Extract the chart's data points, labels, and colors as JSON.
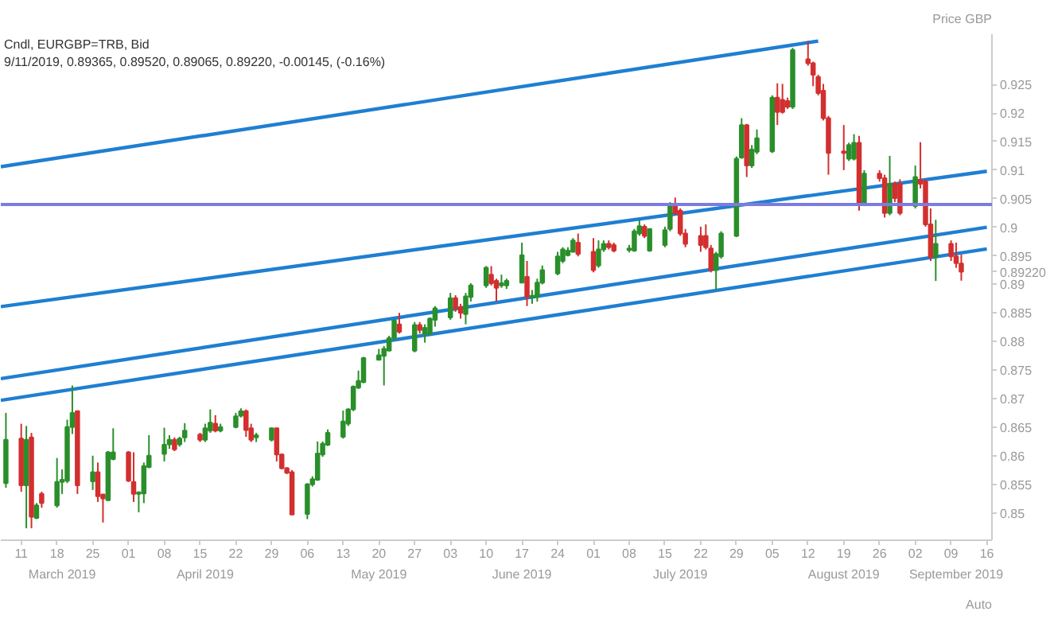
{
  "chart_data": {
    "type": "candlestick",
    "title": "Cndl, EURGBP=TRB, Bid",
    "subtitle": "9/11/2019, 0.89365, 0.89520, 0.89065, 0.89220, -0.00145, (-0.16%)",
    "ylabel": "Price GBP",
    "x": [
      "2019-03-08",
      "2019-03-11",
      "2019-03-12",
      "2019-03-13",
      "2019-03-14",
      "2019-03-15",
      "2019-03-18",
      "2019-03-19",
      "2019-03-20",
      "2019-03-21",
      "2019-03-22",
      "2019-03-25",
      "2019-03-26",
      "2019-03-27",
      "2019-03-28",
      "2019-03-29",
      "2019-04-01",
      "2019-04-02",
      "2019-04-03",
      "2019-04-04",
      "2019-04-05",
      "2019-04-08",
      "2019-04-09",
      "2019-04-10",
      "2019-04-11",
      "2019-04-12",
      "2019-04-15",
      "2019-04-16",
      "2019-04-17",
      "2019-04-18",
      "2019-04-19",
      "2019-04-22",
      "2019-04-23",
      "2019-04-24",
      "2019-04-25",
      "2019-04-26",
      "2019-04-29",
      "2019-04-30",
      "2019-05-01",
      "2019-05-02",
      "2019-05-03",
      "2019-05-06",
      "2019-05-07",
      "2019-05-08",
      "2019-05-09",
      "2019-05-10",
      "2019-05-13",
      "2019-05-14",
      "2019-05-15",
      "2019-05-16",
      "2019-05-17",
      "2019-05-20",
      "2019-05-21",
      "2019-05-22",
      "2019-05-23",
      "2019-05-24",
      "2019-05-27",
      "2019-05-28",
      "2019-05-29",
      "2019-05-30",
      "2019-05-31",
      "2019-06-03",
      "2019-06-04",
      "2019-06-05",
      "2019-06-06",
      "2019-06-07",
      "2019-06-10",
      "2019-06-11",
      "2019-06-12",
      "2019-06-13",
      "2019-06-14",
      "2019-06-17",
      "2019-06-18",
      "2019-06-19",
      "2019-06-20",
      "2019-06-21",
      "2019-06-24",
      "2019-06-25",
      "2019-06-26",
      "2019-06-27",
      "2019-06-28",
      "2019-07-01",
      "2019-07-02",
      "2019-07-03",
      "2019-07-04",
      "2019-07-05",
      "2019-07-08",
      "2019-07-09",
      "2019-07-10",
      "2019-07-11",
      "2019-07-12",
      "2019-07-15",
      "2019-07-16",
      "2019-07-17",
      "2019-07-18",
      "2019-07-19",
      "2019-07-22",
      "2019-07-23",
      "2019-07-24",
      "2019-07-25",
      "2019-07-26",
      "2019-07-29",
      "2019-07-30",
      "2019-07-31",
      "2019-08-01",
      "2019-08-02",
      "2019-08-05",
      "2019-08-06",
      "2019-08-07",
      "2019-08-08",
      "2019-08-09",
      "2019-08-12",
      "2019-08-13",
      "2019-08-14",
      "2019-08-15",
      "2019-08-16",
      "2019-08-19",
      "2019-08-20",
      "2019-08-21",
      "2019-08-22",
      "2019-08-23",
      "2019-08-26",
      "2019-08-27",
      "2019-08-28",
      "2019-08-29",
      "2019-08-30",
      "2019-09-02",
      "2019-09-03",
      "2019-09-04",
      "2019-09-05",
      "2019-09-06",
      "2019-09-09",
      "2019-09-10",
      "2019-09-11"
    ],
    "ohlc": [
      [
        0.8552,
        0.8675,
        0.8544,
        0.8628
      ],
      [
        0.863,
        0.8656,
        0.8537,
        0.8548
      ],
      [
        0.8548,
        0.8652,
        0.8473,
        0.8628
      ],
      [
        0.8632,
        0.864,
        0.8473,
        0.8493
      ],
      [
        0.8491,
        0.8517,
        0.8489,
        0.8513
      ],
      [
        0.8533,
        0.8537,
        0.8509,
        0.8517
      ],
      [
        0.8513,
        0.8596,
        0.8509,
        0.8554
      ],
      [
        0.8554,
        0.8576,
        0.8533,
        0.8558
      ],
      [
        0.8556,
        0.8663,
        0.8552,
        0.865
      ],
      [
        0.865,
        0.8723,
        0.8638,
        0.8675
      ],
      [
        0.8678,
        0.8679,
        0.8533,
        0.8548
      ],
      [
        0.8555,
        0.86,
        0.854,
        0.8571
      ],
      [
        0.8571,
        0.8588,
        0.8519,
        0.8529
      ],
      [
        0.8532,
        0.8533,
        0.8483,
        0.8525
      ],
      [
        0.8522,
        0.8608,
        0.8521,
        0.8606
      ],
      [
        0.8594,
        0.8648,
        0.8592,
        0.8606
      ],
      [
        0.8606,
        0.8608,
        0.8554,
        0.8556
      ],
      [
        0.8554,
        0.8606,
        0.8519,
        0.8533
      ],
      [
        0.8533,
        0.8537,
        0.8501,
        0.8536
      ],
      [
        0.8534,
        0.8588,
        0.8517,
        0.8582
      ],
      [
        0.858,
        0.8636,
        0.8578,
        0.86
      ],
      [
        0.8603,
        0.8649,
        0.859,
        0.8619
      ],
      [
        0.862,
        0.8636,
        0.8612,
        0.8628
      ],
      [
        0.8628,
        0.8632,
        0.8608,
        0.8611
      ],
      [
        0.862,
        0.8633,
        0.8616,
        0.863
      ],
      [
        0.8632,
        0.8657,
        0.8624,
        0.8644
      ],
      [
        0.8637,
        0.864,
        0.8624,
        0.8628
      ],
      [
        0.8628,
        0.8656,
        0.8624,
        0.8648
      ],
      [
        0.8644,
        0.8681,
        0.864,
        0.8658
      ],
      [
        0.8656,
        0.8671,
        0.8641,
        0.8644
      ],
      [
        0.8644,
        0.8656,
        0.8641,
        0.865
      ],
      [
        0.865,
        0.8675,
        0.8648,
        0.8669
      ],
      [
        0.867,
        0.8683,
        0.8667,
        0.8678
      ],
      [
        0.8678,
        0.8681,
        0.8633,
        0.8645
      ],
      [
        0.8648,
        0.8656,
        0.8624,
        0.8628
      ],
      [
        0.8632,
        0.864,
        0.8624,
        0.8636
      ],
      [
        0.8628,
        0.8649,
        0.8625,
        0.8648
      ],
      [
        0.8648,
        0.8649,
        0.859,
        0.8602
      ],
      [
        0.8602,
        0.8604,
        0.8576,
        0.8578
      ],
      [
        0.8578,
        0.858,
        0.8568,
        0.857
      ],
      [
        0.8571,
        0.8575,
        0.8497,
        0.8497
      ],
      [
        0.8498,
        0.8552,
        0.8489,
        0.855
      ],
      [
        0.855,
        0.8564,
        0.8546,
        0.8559
      ],
      [
        0.8558,
        0.8625,
        0.8556,
        0.8604
      ],
      [
        0.8602,
        0.8625,
        0.8598,
        0.8621
      ],
      [
        0.8619,
        0.8646,
        0.8617,
        0.864
      ],
      [
        0.8633,
        0.8679,
        0.863,
        0.866
      ],
      [
        0.8656,
        0.8683,
        0.8652,
        0.8681
      ],
      [
        0.8681,
        0.8723,
        0.8678,
        0.8721
      ],
      [
        0.8719,
        0.8749,
        0.8717,
        0.8731
      ],
      [
        0.8729,
        0.8773,
        0.8727,
        0.8771
      ],
      [
        0.8768,
        0.8787,
        0.8767,
        0.8776
      ],
      [
        0.8775,
        0.8792,
        0.8723,
        0.8787
      ],
      [
        0.8784,
        0.881,
        0.8783,
        0.8806
      ],
      [
        0.8806,
        0.8838,
        0.8802,
        0.8837
      ],
      [
        0.883,
        0.885,
        0.8814,
        0.8817
      ],
      [
        0.8784,
        0.8834,
        0.8781,
        0.8829
      ],
      [
        0.8829,
        0.8834,
        0.8814,
        0.882
      ],
      [
        0.8813,
        0.883,
        0.8798,
        0.8824
      ],
      [
        0.8814,
        0.8842,
        0.881,
        0.884
      ],
      [
        0.8838,
        0.8862,
        0.8826,
        0.8858
      ],
      [
        0.8842,
        0.8885,
        0.8838,
        0.8876
      ],
      [
        0.8876,
        0.8881,
        0.8852,
        0.8858
      ],
      [
        0.886,
        0.8866,
        0.884,
        0.885
      ],
      [
        0.8848,
        0.8885,
        0.883,
        0.8879
      ],
      [
        0.8878,
        0.8902,
        0.887,
        0.8898
      ],
      [
        0.8898,
        0.8932,
        0.8894,
        0.8929
      ],
      [
        0.8917,
        0.8932,
        0.8898,
        0.8902
      ],
      [
        0.8906,
        0.891,
        0.887,
        0.8894
      ],
      [
        0.8898,
        0.8917,
        0.8894,
        0.8902
      ],
      [
        0.8898,
        0.891,
        0.8892,
        0.8906
      ],
      [
        0.8903,
        0.8973,
        0.8902,
        0.8951
      ],
      [
        0.8913,
        0.8941,
        0.8862,
        0.8878
      ],
      [
        0.8878,
        0.889,
        0.8866,
        0.888
      ],
      [
        0.8878,
        0.891,
        0.887,
        0.8903
      ],
      [
        0.8903,
        0.8933,
        0.89,
        0.8925
      ],
      [
        0.8919,
        0.8957,
        0.8916,
        0.8949
      ],
      [
        0.8941,
        0.8965,
        0.8937,
        0.8961
      ],
      [
        0.8951,
        0.8965,
        0.8949,
        0.8959
      ],
      [
        0.8957,
        0.8981,
        0.8956,
        0.8977
      ],
      [
        0.8973,
        0.8989,
        0.8949,
        0.8953
      ],
      [
        0.8957,
        0.8981,
        0.8921,
        0.8925
      ],
      [
        0.8933,
        0.8977,
        0.8929,
        0.8961
      ],
      [
        0.8961,
        0.8977,
        0.8957,
        0.8971
      ],
      [
        0.8971,
        0.8977,
        0.8961,
        0.8965
      ],
      [
        0.8969,
        0.8973,
        0.8956,
        0.8959
      ],
      [
        0.896,
        0.8969,
        0.8956,
        0.8963
      ],
      [
        0.8959,
        0.8997,
        0.8957,
        0.8993
      ],
      [
        0.8989,
        0.9013,
        0.8985,
        0.9002
      ],
      [
        0.9001,
        0.9005,
        0.8981,
        0.8985
      ],
      [
        0.8959,
        0.8998,
        0.8957,
        0.8997
      ],
      [
        0.8969,
        0.9001,
        0.8965,
        0.8995
      ],
      [
        0.8997,
        0.9044,
        0.8993,
        0.9038
      ],
      [
        0.9037,
        0.9052,
        0.9021,
        0.9025
      ],
      [
        0.9029,
        0.9033,
        0.8985,
        0.8989
      ],
      [
        0.8989,
        0.8997,
        0.8965,
        0.8971
      ],
      [
        0.8985,
        0.9001,
        0.8957,
        0.8969
      ],
      [
        0.8985,
        0.9005,
        0.8961,
        0.8965
      ],
      [
        0.8963,
        0.8969,
        0.8921,
        0.8925
      ],
      [
        0.8925,
        0.8957,
        0.889,
        0.8953
      ],
      [
        0.8949,
        0.8993,
        0.8945,
        0.8989
      ],
      [
        0.8985,
        0.9124,
        0.8983,
        0.912
      ],
      [
        0.9122,
        0.9191,
        0.912,
        0.9179
      ],
      [
        0.9179,
        0.9181,
        0.9088,
        0.9108
      ],
      [
        0.9108,
        0.9144,
        0.9104,
        0.9136
      ],
      [
        0.9132,
        0.9171,
        0.9128,
        0.9156
      ],
      [
        0.9133,
        0.9231,
        0.913,
        0.9227
      ],
      [
        0.9227,
        0.9252,
        0.9179,
        0.9202
      ],
      [
        0.9223,
        0.9251,
        0.9199,
        0.9202
      ],
      [
        0.9221,
        0.9227,
        0.9207,
        0.9211
      ],
      [
        0.9211,
        0.9314,
        0.9207,
        0.931
      ],
      [
        0.9294,
        0.9326,
        0.9283,
        0.9287
      ],
      [
        0.9287,
        0.929,
        0.9247,
        0.9267
      ],
      [
        0.9263,
        0.9267,
        0.9231,
        0.9235
      ],
      [
        0.9239,
        0.9251,
        0.9187,
        0.9191
      ],
      [
        0.9191,
        0.9195,
        0.9092,
        0.913
      ],
      [
        0.9133,
        0.9179,
        0.91,
        0.913
      ],
      [
        0.912,
        0.9148,
        0.9116,
        0.9144
      ],
      [
        0.912,
        0.9163,
        0.9117,
        0.9148
      ],
      [
        0.9148,
        0.916,
        0.9029,
        0.904
      ],
      [
        0.904,
        0.91,
        0.9037,
        0.9094
      ],
      [
        0.9094,
        0.91,
        0.908,
        0.9086
      ],
      [
        0.9086,
        0.9092,
        0.9017,
        0.9025
      ],
      [
        0.9025,
        0.9125,
        0.9021,
        0.9076
      ],
      [
        0.9076,
        0.908,
        0.9044,
        0.9051
      ],
      [
        0.9076,
        0.9084,
        0.9021,
        0.9025
      ],
      [
        0.9037,
        0.9108,
        0.9033,
        0.9088
      ],
      [
        0.9083,
        0.9149,
        0.9068,
        0.9076
      ],
      [
        0.908,
        0.9084,
        0.9001,
        0.9005
      ],
      [
        0.9005,
        0.9033,
        0.8941,
        0.8948
      ],
      [
        0.8948,
        0.9013,
        0.8906,
        0.8971
      ],
      [
        0.8971,
        0.8977,
        0.8941,
        0.8949
      ],
      [
        0.8949,
        0.8973,
        0.8929,
        0.8937
      ],
      [
        0.89365,
        0.8952,
        0.89065,
        0.8922
      ]
    ],
    "colors": [
      "#2a8f2a",
      "#d32f2f",
      "#2a8f2a",
      "#d32f2f",
      "#2a8f2a",
      "#d32f2f",
      "#2a8f2a",
      "#2a8f2a",
      "#2a8f2a",
      "#2a8f2a",
      "#d32f2f",
      "#2a8f2a",
      "#d32f2f",
      "#d32f2f",
      "#2a8f2a",
      "#2a8f2a",
      "#d32f2f",
      "#d32f2f",
      "#2a8f2a",
      "#2a8f2a",
      "#2a8f2a",
      "#2a8f2a",
      "#2a8f2a",
      "#d32f2f",
      "#2a8f2a",
      "#2a8f2a",
      "#d32f2f",
      "#2a8f2a",
      "#2a8f2a",
      "#d32f2f",
      "#2a8f2a",
      "#2a8f2a",
      "#2a8f2a",
      "#d32f2f",
      "#d32f2f",
      "#2a8f2a",
      "#2a8f2a",
      "#d32f2f",
      "#d32f2f",
      "#d32f2f",
      "#d32f2f",
      "#2a8f2a",
      "#2a8f2a",
      "#2a8f2a",
      "#2a8f2a",
      "#2a8f2a",
      "#2a8f2a",
      "#2a8f2a",
      "#2a8f2a",
      "#2a8f2a",
      "#2a8f2a",
      "#2a8f2a",
      "#2a8f2a",
      "#2a8f2a",
      "#2a8f2a",
      "#d32f2f",
      "#2a8f2a",
      "#d32f2f",
      "#2a8f2a",
      "#2a8f2a",
      "#2a8f2a",
      "#2a8f2a",
      "#d32f2f",
      "#d32f2f",
      "#2a8f2a",
      "#2a8f2a",
      "#2a8f2a",
      "#d32f2f",
      "#d32f2f",
      "#2a8f2a",
      "#2a8f2a",
      "#2a8f2a",
      "#d32f2f",
      "#2a8f2a",
      "#2a8f2a",
      "#2a8f2a",
      "#2a8f2a",
      "#2a8f2a",
      "#2a8f2a",
      "#2a8f2a",
      "#d32f2f",
      "#d32f2f",
      "#2a8f2a",
      "#2a8f2a",
      "#d32f2f",
      "#d32f2f",
      "#2a8f2a",
      "#2a8f2a",
      "#2a8f2a",
      "#d32f2f",
      "#2a8f2a",
      "#2a8f2a",
      "#2a8f2a",
      "#d32f2f",
      "#d32f2f",
      "#d32f2f",
      "#d32f2f",
      "#d32f2f",
      "#d32f2f",
      "#2a8f2a",
      "#2a8f2a",
      "#2a8f2a",
      "#2a8f2a",
      "#d32f2f",
      "#2a8f2a",
      "#2a8f2a",
      "#2a8f2a",
      "#d32f2f",
      "#d32f2f",
      "#d32f2f",
      "#2a8f2a",
      "#d32f2f",
      "#d32f2f",
      "#d32f2f",
      "#d32f2f",
      "#d32f2f",
      "#d32f2f",
      "#2a8f2a",
      "#2a8f2a",
      "#d32f2f",
      "#2a8f2a",
      "#d32f2f",
      "#d32f2f",
      "#2a8f2a",
      "#d32f2f",
      "#d32f2f",
      "#2a8f2a",
      "#d32f2f",
      "#d32f2f",
      "#d32f2f",
      "#2a8f2a",
      "#d32f2f",
      "#d32f2f",
      "#d32f2f"
    ],
    "series": [
      {
        "type": "line",
        "color": "#1f7fd1",
        "x": [
          "2019-03-07",
          "2019-08-14"
        ],
        "values": [
          0.9106,
          0.9326
        ]
      },
      {
        "type": "line",
        "color": "#1f7fd1",
        "x": [
          "2019-03-07",
          "2019-09-16"
        ],
        "values": [
          0.8861,
          0.9098
        ]
      },
      {
        "type": "line",
        "color": "#1f7fd1",
        "x": [
          "2019-03-07",
          "2019-09-16"
        ],
        "values": [
          0.8735,
          0.9
        ]
      },
      {
        "type": "line",
        "color": "#1f7fd1",
        "x": [
          "2019-03-07",
          "2019-09-16"
        ],
        "values": [
          0.8697,
          0.8962
        ]
      }
    ],
    "ref_lines": [
      {
        "axis": "y",
        "value": 0.904,
        "color": "#7b7be0"
      }
    ],
    "xlim": [
      "2019-03-07",
      "2019-09-17"
    ],
    "ylim": [
      0.8452,
      0.9338
    ],
    "xticks": [
      {
        "value": "2019-03-11",
        "label": "11"
      },
      {
        "value": "2019-03-18",
        "label": "18"
      },
      {
        "value": "2019-03-25",
        "label": "25"
      },
      {
        "value": "2019-04-01",
        "label": "01"
      },
      {
        "value": "2019-04-08",
        "label": "08"
      },
      {
        "value": "2019-04-15",
        "label": "15"
      },
      {
        "value": "2019-04-22",
        "label": "22"
      },
      {
        "value": "2019-04-29",
        "label": "29"
      },
      {
        "value": "2019-05-06",
        "label": "06"
      },
      {
        "value": "2019-05-13",
        "label": "13"
      },
      {
        "value": "2019-05-20",
        "label": "20"
      },
      {
        "value": "2019-05-27",
        "label": "27"
      },
      {
        "value": "2019-06-03",
        "label": "03"
      },
      {
        "value": "2019-06-10",
        "label": "10"
      },
      {
        "value": "2019-06-17",
        "label": "17"
      },
      {
        "value": "2019-06-24",
        "label": "24"
      },
      {
        "value": "2019-07-01",
        "label": "01"
      },
      {
        "value": "2019-07-08",
        "label": "08"
      },
      {
        "value": "2019-07-15",
        "label": "15"
      },
      {
        "value": "2019-07-22",
        "label": "22"
      },
      {
        "value": "2019-07-29",
        "label": "29"
      },
      {
        "value": "2019-08-05",
        "label": "05"
      },
      {
        "value": "2019-08-12",
        "label": "12"
      },
      {
        "value": "2019-08-19",
        "label": "19"
      },
      {
        "value": "2019-08-26",
        "label": "26"
      },
      {
        "value": "2019-09-02",
        "label": "02"
      },
      {
        "value": "2019-09-09",
        "label": "09"
      },
      {
        "value": "2019-09-16",
        "label": "16"
      }
    ],
    "yticks": [
      0.85,
      0.855,
      0.86,
      0.865,
      0.87,
      0.875,
      0.88,
      0.885,
      0.89,
      {
        "value": 0.8922,
        "label": "0.89220"
      },
      0.895,
      0.9,
      0.905,
      0.91,
      0.915,
      0.92,
      0.925
    ],
    "x2lim": [
      "2019-03-07",
      "2019-09-17"
    ],
    "x2ticks": [
      {
        "value": "2019-03-19",
        "label": "March 2019"
      },
      {
        "value": "2019-04-16",
        "label": "April 2019"
      },
      {
        "value": "2019-05-20",
        "label": "May 2019"
      },
      {
        "value": "2019-06-17",
        "label": "June 2019"
      },
      {
        "value": "2019-07-18",
        "label": "July 2019"
      },
      {
        "value": "2019-08-19",
        "label": "August 2019"
      },
      {
        "value": "2019-09-10",
        "label": "September 2019"
      }
    ],
    "annotations": [
      "Auto"
    ]
  }
}
